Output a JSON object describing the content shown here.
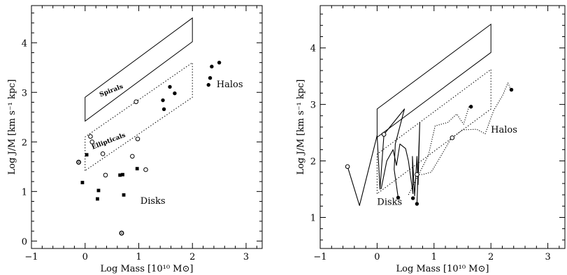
{
  "chart_data": [
    {
      "type": "scatter",
      "xlabel": "Log Mass [10¹⁰ M⊙]",
      "ylabel": "Log J/M [km s⁻¹ kpc]",
      "xlim": [
        -1,
        3.3
      ],
      "ylim": [
        -0.15,
        4.75
      ],
      "xticks": [
        -1,
        0,
        1,
        2,
        3
      ],
      "yticks": [
        0,
        1,
        2,
        3,
        4
      ],
      "tick_labels_x": [
        "−1",
        "0",
        "1",
        "2",
        "3"
      ],
      "tick_labels_y": [
        "0",
        "1",
        "2",
        "3",
        "4"
      ],
      "grid": false,
      "regions": [
        {
          "name": "Spirals",
          "style": "solid",
          "label": "Spirals",
          "vertices": [
            [
              0,
              2.42
            ],
            [
              0,
              2.9
            ],
            [
              2,
              4.5
            ],
            [
              2,
              4.02
            ]
          ],
          "label_at": [
            0.5,
            3.0
          ],
          "label_angle": 21
        },
        {
          "name": "Ellipticals",
          "style": "dotted",
          "label": "Ellipticals",
          "vertices": [
            [
              0,
              1.42
            ],
            [
              0,
              2.1
            ],
            [
              2,
              3.6
            ],
            [
              2,
              2.9
            ]
          ],
          "label_at": [
            0.45,
            1.98
          ],
          "label_angle": 21
        }
      ],
      "series": [
        {
          "marker": "filled-square",
          "points": [
            [
              -0.05,
              1.18
            ],
            [
              0.03,
              1.74
            ],
            [
              0.25,
              1.02
            ],
            [
              0.23,
              0.85
            ],
            [
              0.65,
              1.33
            ],
            [
              0.7,
              1.34
            ],
            [
              0.72,
              0.93
            ],
            [
              0.97,
              1.46
            ]
          ]
        },
        {
          "marker": "open-circle",
          "points": [
            [
              0.1,
              2.11
            ],
            [
              0.13,
              2.0
            ],
            [
              0.33,
              1.76
            ],
            [
              0.38,
              1.33
            ],
            [
              0.88,
              1.71
            ],
            [
              0.95,
              2.81
            ],
            [
              0.98,
              2.06
            ],
            [
              1.13,
              1.44
            ]
          ]
        },
        {
          "marker": "filled-circle",
          "points": [
            [
              1.45,
              2.84
            ],
            [
              1.47,
              2.66
            ],
            [
              1.58,
              3.11
            ],
            [
              1.67,
              2.98
            ],
            [
              2.3,
              3.15
            ],
            [
              2.33,
              3.29
            ],
            [
              2.36,
              3.52
            ],
            [
              2.5,
              3.6
            ]
          ]
        },
        {
          "marker": "circled-dot",
          "points": [
            [
              -0.12,
              1.59
            ],
            [
              0.68,
              0.16
            ]
          ]
        }
      ],
      "annotations": [
        {
          "text": "Halos",
          "at": [
            2.45,
            3.1
          ]
        },
        {
          "text": "Disks",
          "at": [
            1.03,
            0.75
          ]
        }
      ]
    },
    {
      "type": "line",
      "xlabel": "Log Mass [10¹⁰ M⊙]",
      "ylabel": "Log J/M [km s⁻¹ kpc]",
      "xlim": [
        -1,
        3.3
      ],
      "ylim": [
        0.45,
        4.75
      ],
      "xticks": [
        -1,
        0,
        1,
        2,
        3
      ],
      "yticks": [
        1,
        2,
        3,
        4
      ],
      "tick_labels_x": [
        "−1",
        "0",
        "1",
        "2",
        "3"
      ],
      "tick_labels_y": [
        "1",
        "2",
        "3",
        "4"
      ],
      "grid": false,
      "regions": [
        {
          "name": "Spirals",
          "style": "solid",
          "vertices": [
            [
              0,
              2.42
            ],
            [
              0,
              2.92
            ],
            [
              2,
              4.42
            ],
            [
              2,
              3.92
            ]
          ]
        },
        {
          "name": "Ellipticals",
          "style": "dotted",
          "vertices": [
            [
              0,
              1.42
            ],
            [
              0,
              2.12
            ],
            [
              2,
              3.62
            ],
            [
              2,
              2.92
            ]
          ]
        }
      ],
      "series": [
        {
          "style": "solid",
          "points": [
            [
              -0.52,
              1.9
            ],
            [
              -0.31,
              1.21
            ],
            [
              0.0,
              2.45
            ],
            [
              0.05,
              1.5
            ],
            [
              0.12,
              2.47
            ],
            [
              0.48,
              2.92
            ],
            [
              0.32,
              2.3
            ],
            [
              0.3,
              1.85
            ],
            [
              0.37,
              1.35
            ]
          ]
        },
        {
          "style": "solid",
          "points": [
            [
              0.07,
              1.5
            ],
            [
              0.17,
              2.0
            ],
            [
              0.28,
              2.2
            ],
            [
              0.34,
              1.92
            ],
            [
              0.4,
              2.3
            ],
            [
              0.5,
              2.22
            ],
            [
              0.55,
              2.0
            ],
            [
              0.63,
              1.42
            ],
            [
              0.62,
              2.08
            ],
            [
              0.66,
              1.38
            ],
            [
              0.7,
              2.08
            ],
            [
              0.72,
              1.58
            ],
            [
              0.75,
              2.68
            ],
            [
              0.7,
              1.24
            ]
          ]
        },
        {
          "style": "dotted",
          "points": [
            [
              0.55,
              1.4
            ],
            [
              0.9,
              2.1
            ],
            [
              1.02,
              2.62
            ],
            [
              1.24,
              2.68
            ],
            [
              1.4,
              2.83
            ],
            [
              1.52,
              2.65
            ],
            [
              1.62,
              2.98
            ]
          ]
        },
        {
          "style": "dotted",
          "points": [
            [
              0.7,
              1.76
            ],
            [
              0.8,
              1.76
            ],
            [
              0.95,
              1.8
            ],
            [
              1.1,
              2.05
            ],
            [
              1.3,
              2.4
            ],
            [
              1.5,
              2.55
            ],
            [
              1.75,
              2.56
            ],
            [
              1.9,
              2.48
            ],
            [
              2.05,
              2.9
            ],
            [
              2.2,
              3.15
            ],
            [
              2.3,
              3.38
            ],
            [
              2.35,
              3.26
            ]
          ]
        }
      ],
      "markers": [
        {
          "marker": "open-circle",
          "points": [
            [
              -0.52,
              1.9
            ],
            [
              0.12,
              2.47
            ],
            [
              0.7,
              1.76
            ],
            [
              1.32,
              2.41
            ]
          ]
        },
        {
          "marker": "filled-circle",
          "points": [
            [
              0.37,
              1.35
            ],
            [
              0.63,
              1.34
            ],
            [
              0.7,
              1.24
            ],
            [
              1.65,
              2.96
            ],
            [
              2.36,
              3.26
            ]
          ]
        }
      ],
      "annotations": [
        {
          "text": "Halos",
          "at": [
            2.0,
            2.5
          ]
        },
        {
          "text": "Disks",
          "at": [
            0.0,
            1.22
          ]
        }
      ]
    }
  ]
}
